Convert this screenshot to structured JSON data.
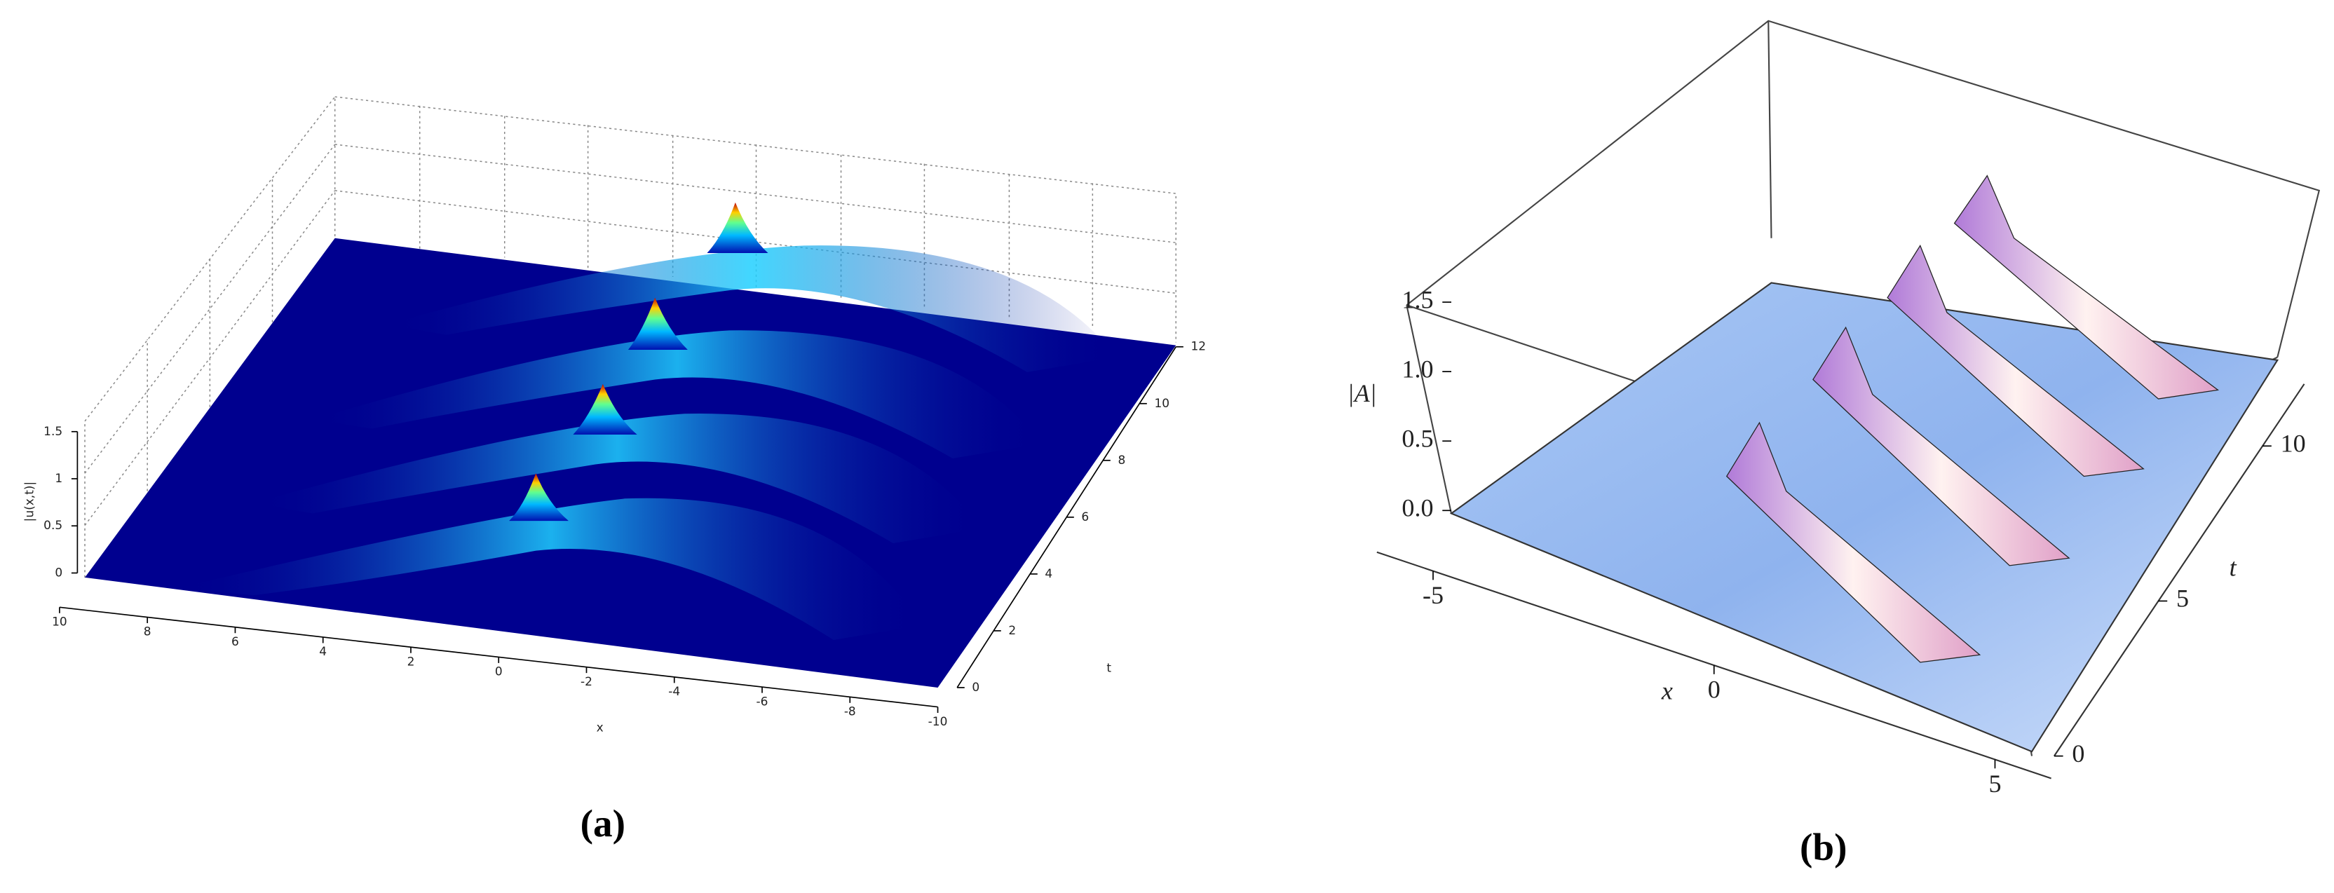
{
  "chart_data": [
    {
      "type": "surface",
      "caption": "(a)",
      "xlabel": "x",
      "ylabel": "t",
      "zlabel": "|u(x,t)|",
      "xlim": [
        -10,
        10
      ],
      "ylim": [
        0,
        12
      ],
      "zlim": [
        0,
        1.5
      ],
      "xticks": [
        10,
        8,
        6,
        4,
        2,
        0,
        -2,
        -4,
        -6,
        -8,
        -10
      ],
      "yticks": [
        0,
        2,
        4,
        6,
        8,
        10,
        12
      ],
      "zticks": [
        0,
        0.5,
        1,
        1.5
      ]
    },
    {
      "type": "surface",
      "caption": "(b)",
      "xlabel": "x",
      "ylabel": "t",
      "zlabel": "|A|",
      "xlim": [
        -6,
        6
      ],
      "ylim": [
        0,
        12
      ],
      "zlim": [
        0,
        1.5
      ],
      "xticks": [
        -5,
        0,
        5
      ],
      "yticks": [
        0,
        5,
        10
      ],
      "zticks": [
        {
          "value": 0,
          "label": "0.0"
        },
        0.5,
        {
          "value": 1,
          "label": "1.0"
        },
        1.5
      ]
    }
  ]
}
